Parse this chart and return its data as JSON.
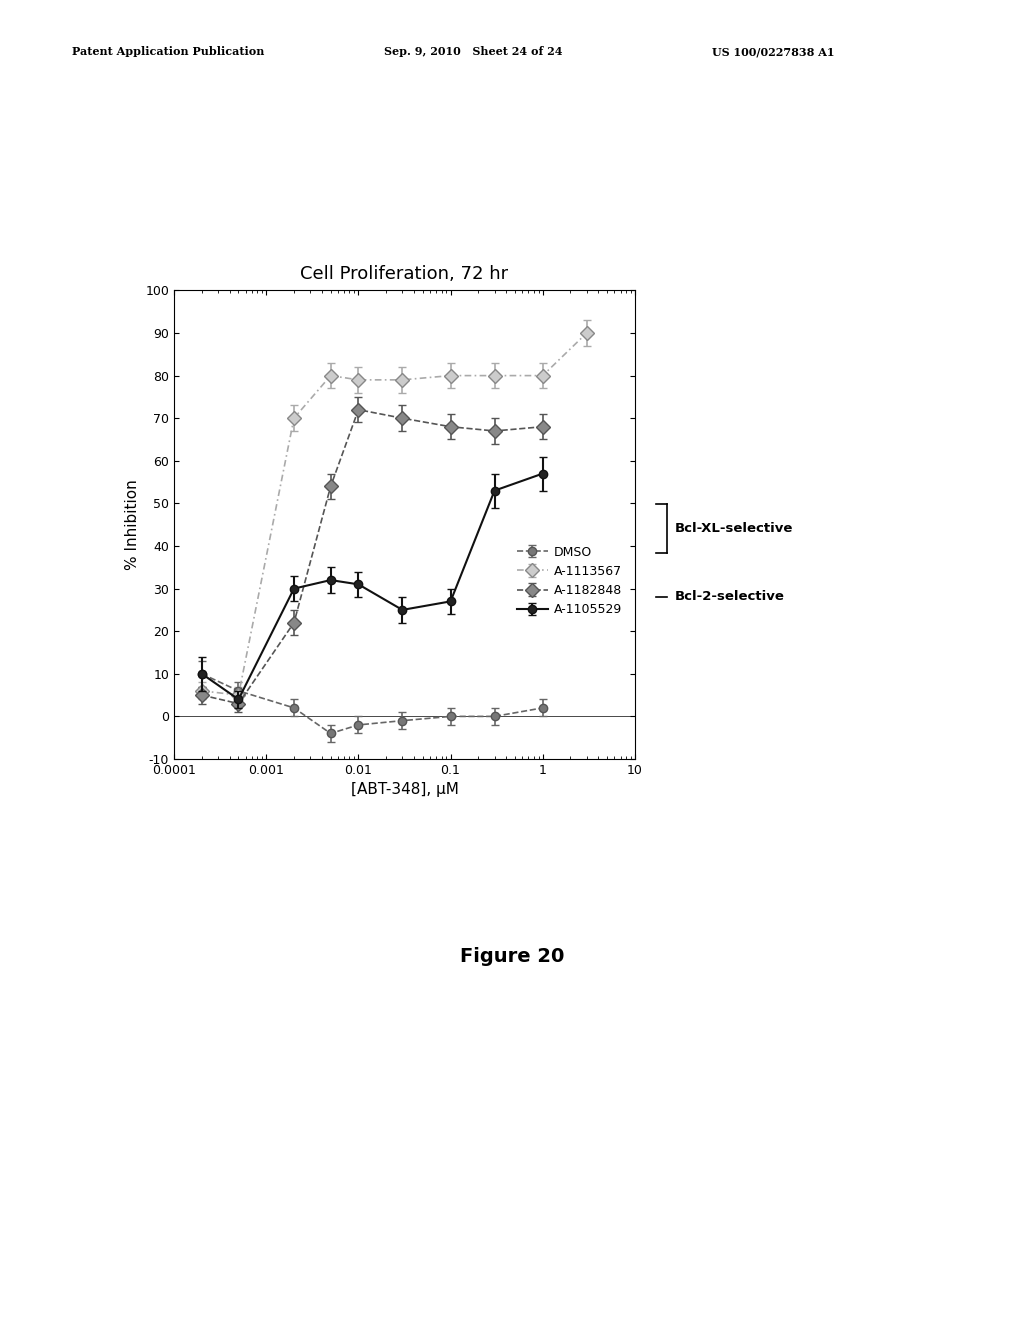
{
  "title": "Cell Proliferation, 72 hr",
  "xlabel": "[ABT-348], μM",
  "ylabel": "% Inhibition",
  "ylim": [
    -10,
    100
  ],
  "yticks": [
    -10,
    0,
    10,
    20,
    30,
    40,
    50,
    60,
    70,
    80,
    90,
    100
  ],
  "header_left": "Patent Application Publication",
  "header_mid": "Sep. 9, 2010   Sheet 24 of 24",
  "header_right": "US 100/0227838 A1",
  "figure_label": "Figure 20",
  "x_DMSO": [
    0.0002,
    0.0005,
    0.002,
    0.005,
    0.01,
    0.03,
    0.1,
    0.3,
    1.0
  ],
  "y_DMSO": [
    10,
    6,
    2,
    -4,
    -2,
    -1,
    0,
    0,
    2
  ],
  "yerr_DMSO": [
    3,
    2,
    2,
    2,
    2,
    2,
    2,
    2,
    2
  ],
  "x_A1113567": [
    0.0002,
    0.0005,
    0.002,
    0.005,
    0.01,
    0.03,
    0.1,
    0.3,
    1.0,
    3.0
  ],
  "y_A1113567": [
    6,
    5,
    70,
    80,
    79,
    79,
    80,
    80,
    80,
    90
  ],
  "yerr_A1113567": [
    2,
    2,
    3,
    3,
    3,
    3,
    3,
    3,
    3,
    3
  ],
  "x_A1182848": [
    0.0002,
    0.0005,
    0.002,
    0.005,
    0.01,
    0.03,
    0.1,
    0.3,
    1.0
  ],
  "y_A1182848": [
    5,
    3,
    22,
    54,
    72,
    70,
    68,
    67,
    68
  ],
  "yerr_A1182848": [
    2,
    2,
    3,
    3,
    3,
    3,
    3,
    3,
    3
  ],
  "x_A1105529": [
    0.0002,
    0.0005,
    0.002,
    0.005,
    0.01,
    0.03,
    0.1,
    0.3,
    1.0
  ],
  "y_A1105529": [
    10,
    4,
    30,
    32,
    31,
    25,
    27,
    53,
    57
  ],
  "yerr_A1105529": [
    4,
    2,
    3,
    3,
    3,
    3,
    3,
    4,
    4
  ],
  "legend_labels": [
    "DMSO",
    "A-1113567",
    "A-1182848",
    "A-1105529"
  ],
  "bracket_label_xl": "Bcl-XL-selective",
  "bracket_label_b2": "Bcl-2-selective"
}
